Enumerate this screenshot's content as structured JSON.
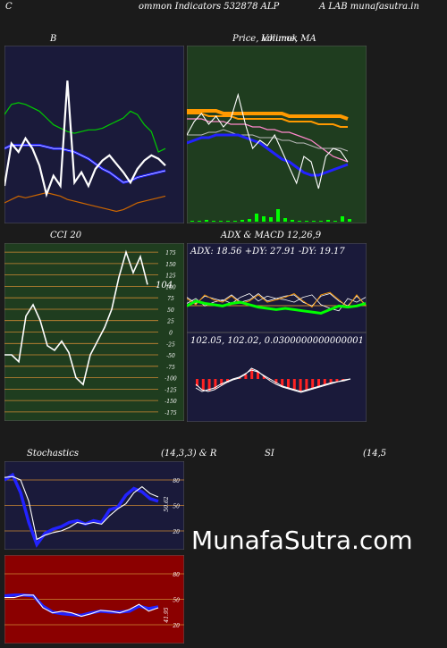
{
  "header": {
    "left_letter": "C",
    "title": "ommon  Indicators 532878  ALP",
    "title_right": "A LAB munafasutra.in"
  },
  "watermark": "MunafaSutra.com",
  "colors": {
    "page_bg": "#1b1b1b",
    "navy_bg": "#1a1a3a",
    "green_bg": "#1f3d1f",
    "red_bg": "#8b0000",
    "price_line": "#ffffff",
    "ma_blue": "#2222ff",
    "bb_upper": "#00cc00",
    "bb_lower": "#cc6600",
    "orange": "#ff9900",
    "pink": "#ff88cc",
    "bright_green": "#00ff00",
    "grid": "#cc8833"
  },
  "chart_data": [
    {
      "id": "bollinger",
      "type": "line",
      "title": "B",
      "series": [
        {
          "values": [
            20,
            45,
            40,
            48,
            42,
            32,
            15,
            26,
            20,
            82,
            22,
            28,
            20,
            30,
            35,
            38,
            33,
            28,
            22,
            30,
            35,
            38,
            36,
            32
          ]
        },
        {
          "values": [
            62,
            68,
            69,
            68,
            66,
            64,
            60,
            56,
            54,
            52,
            51,
            52,
            53,
            53,
            54,
            56,
            58,
            60,
            64,
            62,
            56,
            52,
            40,
            42
          ]
        },
        {
          "values": [
            10,
            12,
            14,
            13,
            14,
            15,
            16,
            15,
            14,
            12,
            11,
            10,
            9,
            8,
            7,
            6,
            5,
            6,
            8,
            10,
            11,
            12,
            13,
            14
          ]
        },
        {
          "values": [
            42,
            44,
            44,
            44,
            44,
            44,
            43,
            42,
            42,
            41,
            40,
            38,
            36,
            33,
            30,
            28,
            25,
            22,
            23,
            25,
            26,
            27,
            28,
            29
          ]
        }
      ]
    },
    {
      "id": "price_ma",
      "type": "line",
      "title": "Price,  Volume,  MA",
      "title_overlap": "Ichimok",
      "series": [
        {
          "values": [
            30,
            35,
            38,
            34,
            37,
            33,
            36,
            45,
            34,
            25,
            28,
            26,
            30,
            24,
            18,
            12,
            22,
            20,
            10,
            22,
            25,
            24,
            20
          ]
        },
        {
          "values": [
            36,
            36,
            36,
            35,
            35,
            35,
            34,
            34,
            34,
            33,
            33,
            32,
            32,
            31,
            31,
            30,
            29,
            28,
            26,
            24,
            22,
            21,
            20
          ]
        },
        {
          "values": [
            38,
            38,
            38,
            37,
            37,
            37,
            37,
            36,
            36,
            36,
            36,
            36,
            36,
            36,
            35,
            35,
            35,
            35,
            34,
            34,
            34,
            33,
            33
          ]
        },
        {
          "values": [
            39,
            39,
            39,
            39,
            39,
            38,
            38,
            38,
            38,
            38,
            38,
            38,
            38,
            38,
            37,
            37,
            37,
            37,
            37,
            37,
            37,
            37,
            36
          ]
        },
        {
          "values": [
            30,
            30,
            30,
            31,
            31,
            32,
            31,
            30,
            30,
            30,
            29,
            29,
            29,
            28,
            28,
            27,
            27,
            26,
            25,
            25,
            25,
            25,
            24
          ]
        },
        {
          "values": [
            27,
            28,
            29,
            29,
            30,
            30,
            30,
            30,
            29,
            28,
            27,
            25,
            23,
            21,
            20,
            18,
            16,
            15,
            15,
            16,
            17,
            18,
            19
          ]
        }
      ],
      "volume": [
        1,
        1,
        2,
        1,
        1,
        1,
        1,
        2,
        3,
        9,
        6,
        5,
        14,
        4,
        2,
        1,
        1,
        1,
        1,
        2,
        1,
        6,
        3
      ]
    },
    {
      "id": "cci",
      "type": "line",
      "title": "CCI 20",
      "value_label": "104",
      "yticks": [
        175,
        150,
        125,
        100,
        75,
        50,
        25,
        0,
        -25,
        -50,
        -75,
        -100,
        -125,
        -150,
        -175
      ],
      "ylim": [
        -185,
        185
      ],
      "series": [
        {
          "values": [
            -50,
            -50,
            -65,
            35,
            60,
            25,
            -30,
            -40,
            -20,
            -45,
            -100,
            -115,
            -50,
            -20,
            10,
            50,
            120,
            175,
            130,
            165,
            104
          ]
        }
      ]
    },
    {
      "id": "adx",
      "type": "line",
      "title": "ADX  & MACD 12,26,9",
      "readout": "ADX: 18.56   +DY: 27.91 -DY: 19.17",
      "series": [
        {
          "values": [
            18,
            22,
            20,
            19,
            18,
            20,
            21,
            19,
            17,
            16,
            15,
            16,
            15,
            14,
            13,
            12,
            15,
            18,
            17,
            18,
            20
          ]
        },
        {
          "values": [
            20,
            24,
            18,
            21,
            23,
            20,
            25,
            28,
            22,
            26,
            24,
            23,
            21,
            25,
            27,
            19,
            16,
            14,
            24,
            21,
            25
          ]
        },
        {
          "values": [
            25,
            20,
            26,
            24,
            22,
            27,
            21,
            23,
            28,
            22,
            24,
            26,
            27,
            21,
            18,
            26,
            28,
            22,
            18,
            26,
            19
          ]
        },
        {
          "values": [
            24,
            19,
            27,
            23,
            21,
            26,
            20,
            22,
            27,
            21,
            23,
            25,
            28,
            22,
            17,
            27,
            29,
            23,
            17,
            27,
            18
          ]
        }
      ]
    },
    {
      "id": "macd",
      "type": "bar",
      "readout": "102.05,  102.02,  0.0300000000000001",
      "series": [
        {
          "values": [
            -10,
            -14,
            -12,
            -10,
            -6,
            -3,
            0,
            2,
            6,
            10,
            8,
            4,
            0,
            -4,
            -8,
            -10,
            -12,
            -14,
            -12,
            -10,
            -8,
            -6,
            -4,
            -3,
            -2,
            0
          ]
        },
        {
          "values": [
            -6,
            -12,
            -14,
            -12,
            -8,
            -4,
            -1,
            1,
            5,
            12,
            9,
            3,
            -2,
            -6,
            -9,
            -11,
            -13,
            -15,
            -13,
            -11,
            -9,
            -7,
            -5,
            -3,
            -1,
            0
          ]
        }
      ],
      "histogram": [
        -8,
        -13,
        -13,
        -11,
        -7,
        -4,
        -1,
        1,
        5,
        11,
        8,
        3,
        -1,
        -5,
        -8,
        -10,
        -12,
        -14,
        -12,
        -10,
        -8,
        -6,
        -4,
        -3,
        -2,
        0
      ]
    },
    {
      "id": "stochastics",
      "type": "line",
      "title": "Stochastics",
      "params": "(14,3,3) & R",
      "value_label": "50.62",
      "yticks": [
        80,
        50,
        20
      ],
      "ylim": [
        0,
        100
      ],
      "series": [
        {
          "values": [
            83,
            84,
            80,
            55,
            10,
            15,
            18,
            20,
            24,
            30,
            28,
            30,
            28,
            38,
            46,
            52,
            65,
            72,
            64,
            60
          ]
        },
        {
          "values": [
            80,
            86,
            65,
            30,
            4,
            17,
            22,
            25,
            30,
            32,
            28,
            32,
            30,
            45,
            48,
            62,
            70,
            66,
            58,
            55
          ]
        }
      ]
    },
    {
      "id": "rsi",
      "type": "line",
      "title": "SI",
      "params": "(14,5",
      "value_label": "41.95",
      "yticks": [
        80,
        50,
        20
      ],
      "ylim": [
        0,
        100
      ],
      "series": [
        {
          "values": [
            52,
            52,
            55,
            55,
            40,
            34,
            36,
            34,
            30,
            33,
            37,
            36,
            34,
            38,
            44,
            36,
            40
          ]
        },
        {
          "values": [
            54,
            55,
            55,
            54,
            42,
            35,
            33,
            32,
            31,
            34,
            36,
            35,
            35,
            36,
            42,
            39,
            41
          ]
        }
      ]
    }
  ]
}
